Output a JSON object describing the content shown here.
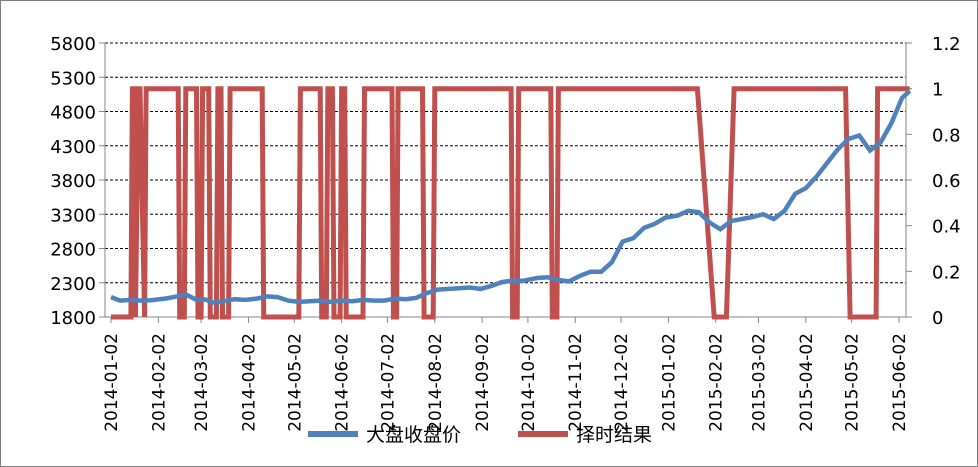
{
  "chart_data": {
    "type": "line",
    "title": "",
    "xlabel": "",
    "ylabel": "",
    "x_ticks": [
      "2014-01-02",
      "2014-02-02",
      "2014-03-02",
      "2014-04-02",
      "2014-05-02",
      "2014-06-02",
      "2014-07-02",
      "2014-08-02",
      "2014-09-02",
      "2014-10-02",
      "2014-11-02",
      "2014-12-02",
      "2015-01-02",
      "2015-02-02",
      "2015-03-02",
      "2015-04-02",
      "2015-05-02",
      "2015-06-02"
    ],
    "y_left": {
      "ticks": [
        1800,
        2300,
        2800,
        3300,
        3800,
        4300,
        4800,
        5300,
        5800
      ],
      "ylim": [
        1800,
        5800
      ]
    },
    "y_right": {
      "ticks": [
        "0",
        "0.2",
        "0.4",
        "0.6",
        "0.8",
        "1",
        "1.2"
      ],
      "ylim": [
        0,
        1.2
      ]
    },
    "grid": "horizontal dashed",
    "legend_position": "bottom-center",
    "colors": {
      "close": "#4f81bd",
      "timing": "#c0504d"
    },
    "series": [
      {
        "name": "大盘收盘价",
        "axis": "left",
        "x": [
          "2014-01-02",
          "2014-01-08",
          "2014-01-15",
          "2014-01-22",
          "2014-01-28",
          "2014-02-07",
          "2014-02-14",
          "2014-02-20",
          "2014-02-27",
          "2014-03-04",
          "2014-03-10",
          "2014-03-17",
          "2014-03-24",
          "2014-03-31",
          "2014-04-08",
          "2014-04-14",
          "2014-04-21",
          "2014-04-28",
          "2014-05-05",
          "2014-05-12",
          "2014-05-19",
          "2014-05-26",
          "2014-06-02",
          "2014-06-09",
          "2014-06-16",
          "2014-06-23",
          "2014-06-30",
          "2014-07-07",
          "2014-07-14",
          "2014-07-21",
          "2014-07-28",
          "2014-08-04",
          "2014-08-11",
          "2014-08-18",
          "2014-08-25",
          "2014-09-01",
          "2014-09-09",
          "2014-09-15",
          "2014-09-22",
          "2014-09-29",
          "2014-10-08",
          "2014-10-15",
          "2014-10-22",
          "2014-10-29",
          "2014-11-05",
          "2014-11-12",
          "2014-11-19",
          "2014-11-26",
          "2014-12-03",
          "2014-12-10",
          "2014-12-17",
          "2014-12-24",
          "2014-12-31",
          "2015-01-08",
          "2015-01-15",
          "2015-01-22",
          "2015-01-29",
          "2015-02-05",
          "2015-02-12",
          "2015-02-26",
          "2015-03-05",
          "2015-03-12",
          "2015-03-19",
          "2015-03-26",
          "2015-04-02",
          "2015-04-09",
          "2015-04-16",
          "2015-04-23",
          "2015-04-30",
          "2015-05-07",
          "2015-05-14",
          "2015-05-21",
          "2015-05-28",
          "2015-06-04",
          "2015-06-09"
        ],
        "values": [
          2090,
          2040,
          2050,
          2040,
          2045,
          2070,
          2100,
          2130,
          2050,
          2060,
          2010,
          2030,
          2060,
          2050,
          2070,
          2100,
          2090,
          2040,
          2020,
          2030,
          2040,
          2020,
          2040,
          2030,
          2050,
          2040,
          2040,
          2070,
          2060,
          2080,
          2150,
          2200,
          2210,
          2220,
          2230,
          2210,
          2260,
          2310,
          2330,
          2330,
          2370,
          2380,
          2340,
          2320,
          2400,
          2460,
          2460,
          2600,
          2900,
          2950,
          3100,
          3160,
          3250,
          3280,
          3350,
          3330,
          3180,
          3080,
          3200,
          3260,
          3300,
          3230,
          3350,
          3600,
          3680,
          3850,
          4050,
          4250,
          4400,
          4450,
          4230,
          4350,
          4630,
          5000,
          5100
        ]
      },
      {
        "name": "择时结果",
        "axis": "right",
        "x": [
          "2014-01-02",
          "2014-01-15",
          "2014-01-16",
          "2014-01-17",
          "2014-01-18",
          "2014-01-20",
          "2014-01-21",
          "2014-01-24",
          "2014-01-25",
          "2014-02-15",
          "2014-02-16",
          "2014-02-19",
          "2014-02-20",
          "2014-02-27",
          "2014-02-28",
          "2014-03-02",
          "2014-03-03",
          "2014-03-07",
          "2014-03-08",
          "2014-03-12",
          "2014-03-13",
          "2014-03-15",
          "2014-03-16",
          "2014-03-20",
          "2014-03-21",
          "2014-04-11",
          "2014-04-12",
          "2014-05-05",
          "2014-05-06",
          "2014-05-19",
          "2014-05-20",
          "2014-05-23",
          "2014-05-24",
          "2014-05-27",
          "2014-05-28",
          "2014-06-01",
          "2014-06-02",
          "2014-06-04",
          "2014-06-05",
          "2014-06-16",
          "2014-06-17",
          "2014-07-05",
          "2014-07-06",
          "2014-07-08",
          "2014-07-09",
          "2014-07-25",
          "2014-07-26",
          "2014-08-01",
          "2014-08-02",
          "2014-09-21",
          "2014-09-22",
          "2014-09-25",
          "2014-09-26",
          "2014-10-17",
          "2014-10-18",
          "2014-10-21",
          "2014-10-22",
          "2014-10-25",
          "2014-10-26",
          "2014-12-21",
          "2015-01-20",
          "2015-01-21",
          "2015-02-01",
          "2015-02-09",
          "2015-02-14",
          "2015-04-28",
          "2015-05-01",
          "2015-05-07",
          "2015-05-14",
          "2015-05-18",
          "2015-05-19",
          "2015-06-04",
          "2015-06-09"
        ],
        "values": [
          0,
          0,
          1,
          1,
          0,
          1,
          1,
          0,
          1,
          1,
          0,
          0,
          1,
          1,
          0,
          0,
          1,
          1,
          0,
          0,
          1,
          1,
          0,
          0,
          1,
          1,
          0,
          0,
          1,
          1,
          0,
          0,
          1,
          1,
          0,
          0,
          1,
          1,
          0,
          0,
          1,
          1,
          0,
          0,
          1,
          1,
          0,
          0,
          1,
          1,
          0,
          0,
          1,
          1,
          0,
          0,
          1,
          1,
          1,
          1,
          1,
          1,
          0,
          0,
          1,
          1,
          0,
          0,
          0,
          0,
          1,
          1,
          1
        ]
      }
    ]
  }
}
